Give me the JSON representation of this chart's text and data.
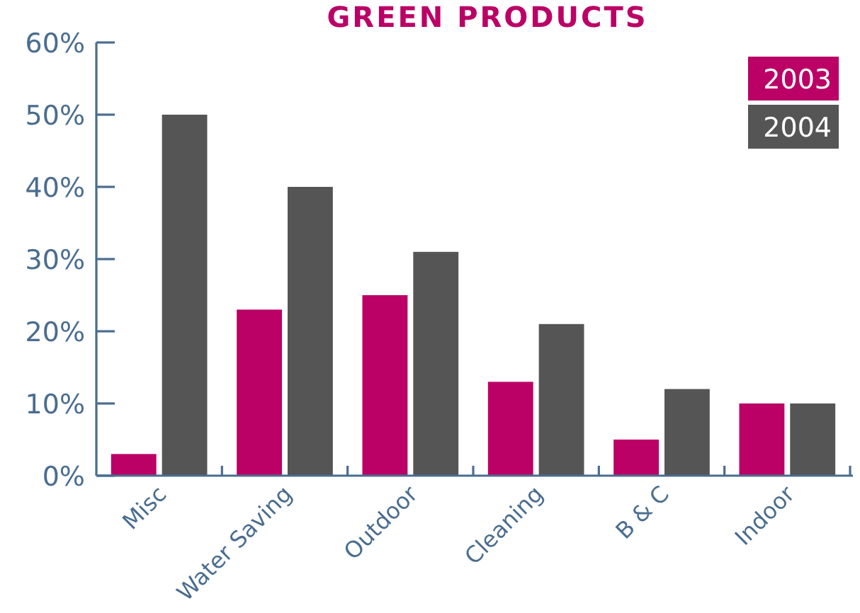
{
  "chart_data": {
    "type": "bar",
    "title": "GREEN PRODUCTS",
    "categories": [
      "Misc",
      "Water Saving",
      "Outdoor",
      "Cleaning",
      "B & C",
      "Indoor"
    ],
    "series": [
      {
        "name": "2003",
        "color": "#bb0066",
        "values": [
          3,
          23,
          25,
          13,
          5,
          10
        ]
      },
      {
        "name": "2004",
        "color": "#555555",
        "values": [
          50,
          40,
          31,
          21,
          12,
          10
        ]
      }
    ],
    "ylim": [
      0,
      60
    ],
    "yticks": [
      {
        "value": 0,
        "label": "0%"
      },
      {
        "value": 10,
        "label": "10%"
      },
      {
        "value": 20,
        "label": "20%"
      },
      {
        "value": 30,
        "label": "30%"
      },
      {
        "value": 40,
        "label": "40%"
      },
      {
        "value": 50,
        "label": "50%"
      },
      {
        "value": 60,
        "label": "60%"
      }
    ],
    "legend": "top right"
  }
}
